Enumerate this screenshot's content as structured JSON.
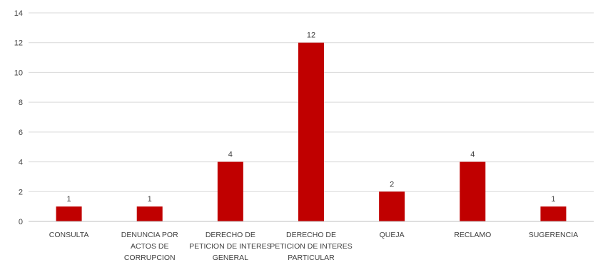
{
  "chart_data": {
    "type": "bar",
    "title": "",
    "xlabel": "",
    "ylabel": "",
    "categories": [
      [
        "CONSULTA"
      ],
      [
        "DENUNCIA POR",
        "ACTOS DE",
        "CORRUPCION"
      ],
      [
        "DERECHO DE",
        "PETICION DE INTERES",
        "GENERAL"
      ],
      [
        "DERECHO DE",
        "PETICION DE INTERES",
        "PARTICULAR"
      ],
      [
        "QUEJA"
      ],
      [
        "RECLAMO"
      ],
      [
        "SUGERENCIA"
      ]
    ],
    "values": [
      1,
      1,
      4,
      12,
      2,
      4,
      1
    ],
    "data_labels": [
      "1",
      "1",
      "4",
      "12",
      "2",
      "4",
      "1"
    ],
    "yticks": [
      "0",
      "2",
      "4",
      "6",
      "8",
      "10",
      "12",
      "14"
    ],
    "ylim": [
      0,
      14
    ],
    "grid": true,
    "bar_color": "#c00000",
    "grid_color": "#d9d9d9"
  }
}
